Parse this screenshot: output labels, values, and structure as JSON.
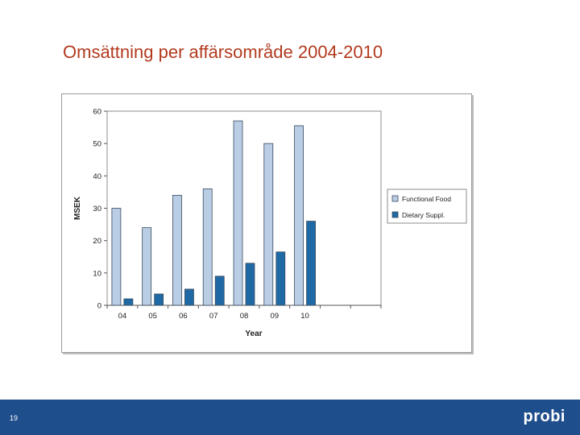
{
  "slide": {
    "title": "Omsättning per affärsområde 2004-2010",
    "page_number": "19",
    "logo_text": "probi"
  },
  "colors": {
    "title": "#b23a1e",
    "footer": "#1f4e8c",
    "functional_food": "#b9cde5",
    "dietary_suppl": "#1f6aa5"
  },
  "chart_data": {
    "type": "bar",
    "title": "",
    "xlabel": "Year",
    "ylabel": "MSEK",
    "ylim": [
      0,
      60
    ],
    "yticks": [
      "0",
      "10",
      "20",
      "30",
      "40",
      "50",
      "60"
    ],
    "categories": [
      "04",
      "05",
      "06",
      "07",
      "08",
      "09",
      "10"
    ],
    "series": [
      {
        "name": "Functional Food",
        "values": [
          30,
          24,
          34,
          36,
          57,
          50,
          55.5
        ]
      },
      {
        "name": "Dietary Suppl.",
        "values": [
          2,
          3.5,
          5,
          9,
          13,
          16.5,
          26
        ]
      }
    ],
    "legend_position": "right",
    "grid": false
  }
}
